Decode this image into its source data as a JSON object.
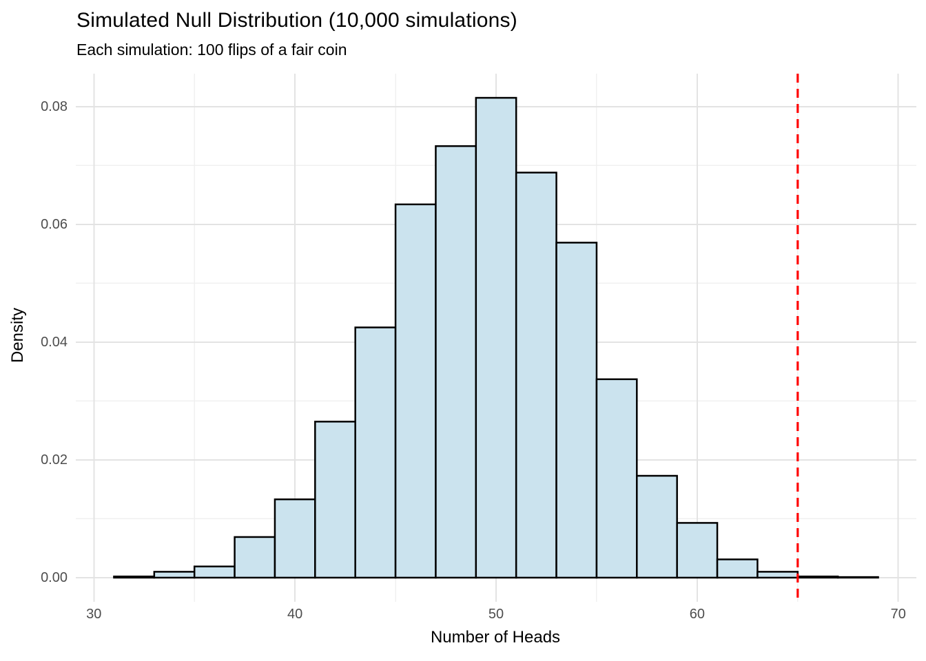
{
  "page": {
    "background": "#ffffff"
  },
  "chart_data": {
    "type": "bar",
    "subtype": "histogram",
    "title": "Simulated Null Distribution (10,000 simulations)",
    "subtitle": "Each simulation: 100 flips of a fair coin",
    "xlabel": "Number of Heads",
    "ylabel": "Density",
    "grid": true,
    "legend_position": "none",
    "bin_width": 2,
    "bin_edges": [
      31,
      33,
      35,
      37,
      39,
      41,
      43,
      45,
      47,
      49,
      51,
      53,
      55,
      57,
      59,
      61,
      63,
      65,
      67,
      69
    ],
    "densities": [
      0.0002,
      0.001,
      0.0019,
      0.0069,
      0.0133,
      0.0265,
      0.0425,
      0.0634,
      0.0733,
      0.0815,
      0.0688,
      0.0569,
      0.0337,
      0.0173,
      0.0093,
      0.0031,
      0.001,
      0.0002,
      0.0001
    ],
    "x_axis": {
      "major_ticks": [
        30,
        40,
        50,
        60,
        70
      ],
      "tick_labels": [
        "30",
        "40",
        "50",
        "60",
        "70"
      ],
      "minor_gridlines": [
        35,
        45,
        55,
        65
      ],
      "lim_display": [
        29.1,
        70.9
      ]
    },
    "y_axis": {
      "major_ticks": [
        0,
        0.02,
        0.04,
        0.06,
        0.08
      ],
      "tick_labels": [
        "0.00",
        "0.02",
        "0.04",
        "0.06",
        "0.08"
      ],
      "minor_gridlines": [
        0.01,
        0.03,
        0.05,
        0.07
      ],
      "lim_display": [
        -0.0041,
        0.0856
      ]
    },
    "vline": {
      "x": 65,
      "color": "#ff0000",
      "style": "dashed"
    },
    "style": {
      "bar_fill": "#cbe3ee",
      "bar_stroke": "#000000",
      "grid_major": "#e3e3e3",
      "grid_minor": "#f0f0f0",
      "axis_tick_text": "#4d4d4d",
      "title_text": "#000000"
    }
  }
}
